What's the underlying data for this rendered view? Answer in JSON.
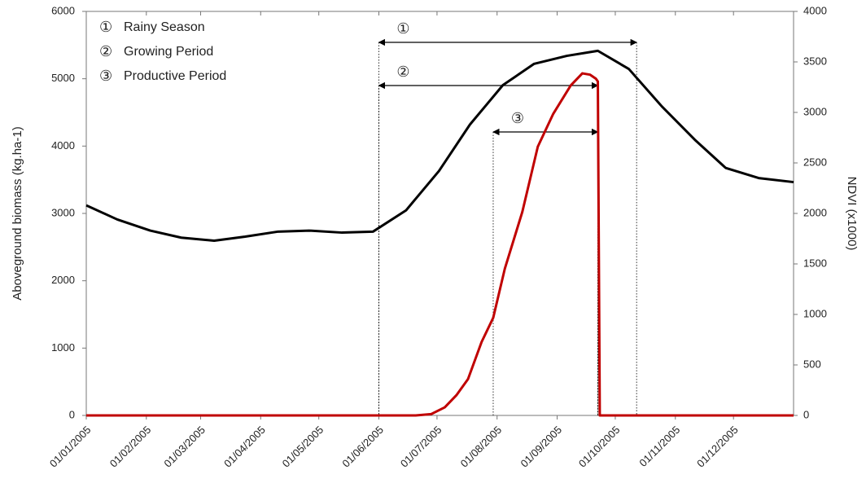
{
  "chart_data": {
    "type": "line",
    "ylabel": "Aboveground biomass (kg.ha-1)",
    "y2label": "NDVI (x1000)",
    "xlim": [
      0,
      365
    ],
    "xticks": [
      {
        "value": 0,
        "label": "01/01/2005"
      },
      {
        "value": 31,
        "label": "01/02/2005"
      },
      {
        "value": 59,
        "label": "01/03/2005"
      },
      {
        "value": 90,
        "label": "01/04/2005"
      },
      {
        "value": 120,
        "label": "01/05/2005"
      },
      {
        "value": 151,
        "label": "01/06/2005"
      },
      {
        "value": 181,
        "label": "01/07/2005"
      },
      {
        "value": 212,
        "label": "01/08/2005"
      },
      {
        "value": 243,
        "label": "01/09/2005"
      },
      {
        "value": 273,
        "label": "01/10/2005"
      },
      {
        "value": 304,
        "label": "01/11/2005"
      },
      {
        "value": 334,
        "label": "01/12/2005"
      }
    ],
    "ylim": [
      0,
      6000
    ],
    "yticks": [
      0,
      1000,
      2000,
      3000,
      4000,
      5000,
      6000
    ],
    "y2lim": [
      0,
      4000
    ],
    "y2ticks": [
      0,
      500,
      1000,
      1500,
      2000,
      2500,
      3000,
      3500,
      4000
    ],
    "series": [
      {
        "color": "#000000",
        "axis": "y2",
        "x": [
          0,
          16,
          33,
          49,
          66,
          82,
          99,
          115,
          132,
          148,
          165,
          182,
          198,
          215,
          231,
          248,
          264,
          280,
          297,
          314,
          330,
          347,
          365
        ],
        "values": [
          2080,
          1940,
          1830,
          1760,
          1730,
          1770,
          1820,
          1830,
          1810,
          1820,
          2030,
          2420,
          2880,
          3270,
          3480,
          3560,
          3610,
          3430,
          3060,
          2730,
          2450,
          2350,
          2310
        ]
      },
      {
        "color": "#c00000",
        "axis": "y",
        "x": [
          0,
          170,
          178,
          185,
          191,
          197,
          204,
          210,
          216,
          225,
          233,
          241,
          250,
          256,
          260,
          263,
          264,
          265,
          365
        ],
        "values": [
          0,
          0,
          20,
          120,
          300,
          540,
          1090,
          1450,
          2180,
          3020,
          3990,
          4480,
          4900,
          5080,
          5060,
          5000,
          4960,
          0,
          0
        ]
      }
    ],
    "periods": [
      {
        "label": "①",
        "name": "Rainy Season",
        "start": 151,
        "end": 284
      },
      {
        "label": "②",
        "name": "Growing Period",
        "start": 151,
        "end": 264
      },
      {
        "label": "③",
        "name": "Productive Period",
        "start": 210,
        "end": 264
      }
    ]
  }
}
